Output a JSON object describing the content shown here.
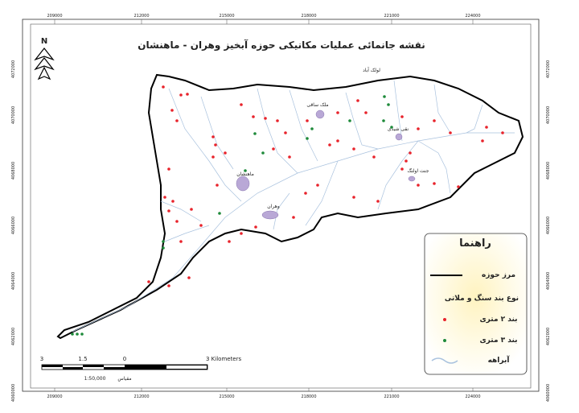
{
  "title": "نقشه جانمائی عملیات مکانیکی حوزه آبخیز وهران - ماهنشان",
  "north": "N",
  "coordinates": {
    "top": [
      209000,
      212000,
      215000,
      218000,
      221000,
      224000
    ],
    "bottom": [
      209000,
      212000,
      215000,
      218000,
      221000,
      224000
    ],
    "left": [
      4072000,
      4070000,
      4068000,
      4066000,
      4064000,
      4062000,
      4060000
    ],
    "right": [
      4072000,
      4070000,
      4068000,
      4066000,
      4064000,
      4062000,
      4060000
    ]
  },
  "places": [
    "لولک آباد",
    "ملک ساقی",
    "نقی شیدی",
    "ماهنشان",
    "وهران",
    "جنت اولنگ"
  ],
  "legend": {
    "title": "راهنما",
    "boundary": "مرز حوزه",
    "type_heading": "نوع بند سنگ و ملاتی",
    "dam_2m": "بند ۲ متری",
    "dam_3m": "بند ۳ متری",
    "streams": "آبراهه"
  },
  "scale": {
    "labels": [
      "3",
      "1.5",
      "0",
      "3 Kilometers"
    ],
    "ratio": "1:50,000",
    "caption": "مقیاس"
  }
}
